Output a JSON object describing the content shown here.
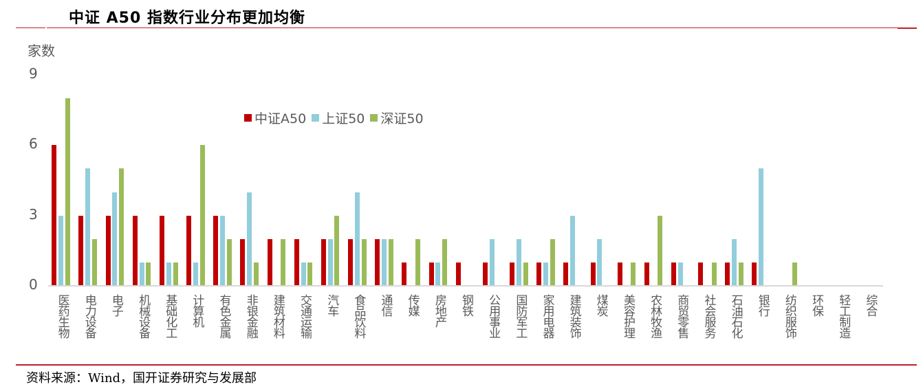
{
  "header": {
    "title": "中证 A50 指数行业分布更加均衡"
  },
  "footer": {
    "source": "资料来源：Wind，国开证券研究与发展部"
  },
  "colors": {
    "rule": "#c0202a",
    "series_a50": "#c00000",
    "series_sh50": "#92cddc",
    "series_sz50": "#9bbb59",
    "axis": "#d9d9d9",
    "text": "#595959"
  },
  "chart_data": {
    "type": "bar",
    "title": "中证 A50 指数行业分布更加均衡",
    "xlabel": "",
    "ylabel": "家数",
    "ylim": [
      0,
      9
    ],
    "yticks": [
      0,
      3,
      6,
      9
    ],
    "grid": false,
    "legend_position": "top-center (inside plot)",
    "categories": [
      "医药生物",
      "电力设备",
      "电子",
      "机械设备",
      "基础化工",
      "计算机",
      "有色金属",
      "非银金融",
      "建筑材料",
      "交通运输",
      "汽车",
      "食品饮料",
      "通信",
      "传媒",
      "房地产",
      "钢铁",
      "公用事业",
      "国防军工",
      "家用电器",
      "建筑装饰",
      "煤炭",
      "美容护理",
      "农林牧渔",
      "商贸零售",
      "社会服务",
      "石油石化",
      "银行",
      "纺织服饰",
      "环保",
      "轻工制造",
      "综合"
    ],
    "series": [
      {
        "name": "中证A50",
        "color": "#c00000",
        "values": [
          6,
          3,
          3,
          3,
          3,
          3,
          3,
          2,
          2,
          2,
          2,
          2,
          2,
          1,
          1,
          1,
          1,
          1,
          1,
          1,
          1,
          1,
          1,
          1,
          1,
          1,
          1,
          0,
          0,
          0,
          0
        ]
      },
      {
        "name": "上证50",
        "color": "#92cddc",
        "values": [
          3,
          5,
          4,
          1,
          1,
          1,
          3,
          4,
          0,
          1,
          2,
          4,
          2,
          0,
          1,
          0,
          2,
          2,
          1,
          3,
          2,
          0,
          0,
          1,
          0,
          2,
          5,
          0,
          0,
          0,
          0
        ]
      },
      {
        "name": "深证50",
        "color": "#9bbb59",
        "values": [
          8,
          2,
          5,
          1,
          1,
          6,
          2,
          1,
          2,
          1,
          3,
          2,
          2,
          2,
          2,
          0,
          0,
          1,
          2,
          0,
          0,
          1,
          3,
          0,
          1,
          1,
          0,
          1,
          0,
          0,
          0
        ]
      }
    ]
  }
}
